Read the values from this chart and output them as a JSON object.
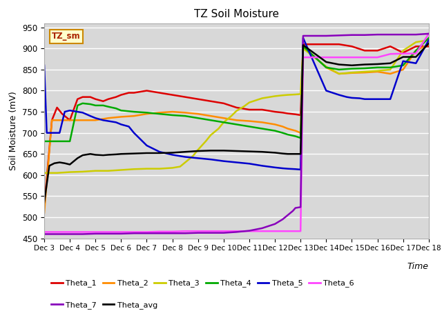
{
  "title": "TZ Soil Moisture",
  "ylabel": "Soil Moisture (mV)",
  "xlabel": "Time",
  "ylim": [
    450,
    960
  ],
  "yticks": [
    450,
    500,
    550,
    600,
    650,
    700,
    750,
    800,
    850,
    900,
    950
  ],
  "label_box": "TZ_sm",
  "x_labels": [
    "Dec 3",
    "Dec 4",
    "Dec 5",
    "Dec 6",
    "Dec 7",
    "Dec 8",
    "Dec 9",
    "Dec 10",
    "Dec 11",
    "Dec 12",
    "Dec 13",
    "Dec 14",
    "Dec 15",
    "Dec 16",
    "Dec 17",
    "Dec 18"
  ],
  "series_order": [
    "Theta_1",
    "Theta_2",
    "Theta_3",
    "Theta_4",
    "Theta_5",
    "Theta_6",
    "Theta_7",
    "Theta_avg"
  ],
  "series": {
    "Theta_1": {
      "color": "#dd0000",
      "data_x": [
        0,
        0.3,
        0.5,
        0.7,
        1.0,
        1.3,
        1.5,
        1.8,
        2.0,
        2.3,
        2.5,
        2.8,
        3.0,
        3.3,
        3.5,
        4.0,
        4.5,
        5.0,
        5.5,
        6.0,
        6.5,
        7.0,
        7.5,
        8.0,
        8.5,
        9.0,
        9.3,
        9.5,
        9.8,
        10.0,
        10.1,
        11.0,
        11.5,
        12.0,
        12.5,
        13.0,
        13.5,
        14.0,
        14.5,
        15.0
      ],
      "data_y": [
        525,
        730,
        760,
        745,
        730,
        780,
        785,
        785,
        780,
        775,
        780,
        785,
        790,
        795,
        795,
        800,
        795,
        790,
        785,
        780,
        775,
        770,
        760,
        755,
        755,
        750,
        748,
        746,
        744,
        742,
        910,
        910,
        910,
        905,
        895,
        895,
        905,
        890,
        905,
        905
      ]
    },
    "Theta_2": {
      "color": "#ff8c00",
      "data_x": [
        0,
        0.3,
        0.5,
        0.7,
        1.0,
        1.3,
        1.5,
        1.8,
        2.0,
        2.5,
        3.0,
        3.5,
        4.0,
        4.5,
        5.0,
        5.5,
        6.0,
        6.5,
        7.0,
        7.5,
        8.0,
        8.5,
        9.0,
        9.3,
        9.5,
        9.8,
        10.0,
        10.1,
        11.0,
        11.5,
        12.0,
        12.5,
        13.0,
        13.5,
        14.0,
        14.5,
        15.0
      ],
      "data_y": [
        510,
        730,
        730,
        730,
        730,
        730,
        730,
        730,
        730,
        735,
        738,
        740,
        745,
        748,
        750,
        748,
        745,
        740,
        735,
        730,
        728,
        725,
        720,
        715,
        710,
        705,
        700,
        905,
        855,
        840,
        842,
        843,
        845,
        840,
        850,
        895,
        910
      ]
    },
    "Theta_3": {
      "color": "#cccc00",
      "data_x": [
        0,
        0.3,
        0.5,
        1.0,
        1.5,
        2.0,
        2.5,
        3.0,
        3.5,
        4.0,
        4.5,
        5.0,
        5.3,
        5.5,
        5.8,
        6.0,
        6.3,
        6.5,
        6.8,
        7.0,
        7.3,
        7.5,
        7.8,
        8.0,
        8.3,
        8.5,
        8.8,
        9.0,
        9.3,
        9.5,
        9.8,
        10.0,
        10.1,
        11.0,
        11.5,
        12.0,
        12.5,
        13.0,
        13.5,
        14.0,
        14.5,
        15.0
      ],
      "data_y": [
        605,
        605,
        605,
        607,
        608,
        610,
        610,
        612,
        614,
        615,
        615,
        617,
        620,
        630,
        645,
        660,
        680,
        695,
        710,
        725,
        740,
        752,
        763,
        772,
        778,
        782,
        785,
        787,
        789,
        790,
        791,
        792,
        900,
        857,
        840,
        843,
        845,
        847,
        850,
        895,
        915,
        920
      ]
    },
    "Theta_4": {
      "color": "#00aa00",
      "data_x": [
        0,
        0.3,
        0.5,
        0.7,
        1.0,
        1.3,
        1.5,
        1.8,
        2.0,
        2.3,
        2.5,
        2.8,
        3.0,
        3.5,
        4.0,
        4.5,
        5.0,
        5.5,
        6.0,
        6.5,
        7.0,
        7.5,
        8.0,
        8.5,
        9.0,
        9.3,
        9.5,
        9.8,
        10.0,
        10.1,
        11.0,
        11.5,
        12.0,
        12.5,
        13.0,
        13.5,
        14.0,
        14.5,
        15.0
      ],
      "data_y": [
        680,
        680,
        680,
        680,
        680,
        765,
        770,
        768,
        765,
        765,
        762,
        758,
        753,
        750,
        748,
        745,
        742,
        740,
        735,
        730,
        725,
        720,
        715,
        710,
        705,
        700,
        696,
        692,
        688,
        905,
        855,
        850,
        852,
        853,
        855,
        855,
        860,
        895,
        925
      ]
    },
    "Theta_5": {
      "color": "#0000cc",
      "data_x": [
        0,
        0.1,
        0.2,
        0.4,
        0.6,
        0.8,
        1.0,
        1.3,
        1.5,
        1.8,
        2.0,
        2.3,
        2.5,
        2.8,
        3.0,
        3.3,
        3.5,
        4.0,
        4.5,
        5.0,
        5.5,
        6.0,
        6.5,
        7.0,
        7.5,
        8.0,
        8.5,
        9.0,
        9.3,
        9.5,
        9.8,
        10.0,
        10.1,
        11.0,
        11.5,
        11.8,
        12.0,
        12.3,
        12.5,
        13.0,
        13.5,
        14.0,
        14.5,
        15.0
      ],
      "data_y": [
        860,
        700,
        700,
        700,
        700,
        750,
        753,
        750,
        748,
        740,
        735,
        730,
        728,
        725,
        720,
        715,
        700,
        670,
        655,
        648,
        643,
        640,
        637,
        633,
        630,
        627,
        622,
        618,
        616,
        615,
        614,
        613,
        925,
        800,
        790,
        785,
        783,
        782,
        780,
        780,
        780,
        870,
        865,
        920
      ]
    },
    "Theta_6": {
      "color": "#ff44ff",
      "data_x": [
        0,
        0.5,
        1.0,
        1.5,
        2.0,
        2.5,
        3.0,
        3.5,
        4.0,
        4.5,
        5.0,
        5.5,
        6.0,
        6.5,
        7.0,
        7.5,
        8.0,
        8.5,
        9.0,
        9.5,
        9.8,
        10.0,
        10.1,
        10.5,
        11.0,
        11.5,
        12.0,
        12.5,
        13.0,
        13.5,
        14.0,
        14.5,
        15.0
      ],
      "data_y": [
        465,
        465,
        465,
        465,
        465,
        465,
        465,
        465,
        465,
        466,
        466,
        467,
        467,
        467,
        467,
        467,
        467,
        467,
        467,
        467,
        467,
        467,
        879,
        879,
        879,
        879,
        879,
        879,
        879,
        887,
        888,
        888,
        935
      ]
    },
    "Theta_7": {
      "color": "#8800bb",
      "data_x": [
        0,
        0.5,
        1.0,
        1.5,
        2.0,
        2.5,
        3.0,
        3.5,
        4.0,
        4.5,
        5.0,
        5.5,
        6.0,
        6.5,
        7.0,
        7.5,
        8.0,
        8.5,
        9.0,
        9.3,
        9.5,
        9.7,
        9.8,
        10.0,
        10.1,
        11.0,
        11.5,
        12.0,
        12.5,
        13.0,
        13.5,
        14.0,
        14.5,
        15.0
      ],
      "data_y": [
        460,
        460,
        460,
        460,
        461,
        461,
        461,
        462,
        462,
        462,
        462,
        462,
        463,
        463,
        463,
        465,
        468,
        474,
        484,
        495,
        505,
        515,
        522,
        524,
        930,
        930,
        931,
        932,
        932,
        933,
        933,
        933,
        933,
        935
      ]
    },
    "Theta_avg": {
      "color": "#000000",
      "data_x": [
        0,
        0.2,
        0.4,
        0.6,
        0.8,
        1.0,
        1.3,
        1.5,
        1.8,
        2.0,
        2.3,
        2.5,
        2.8,
        3.0,
        3.5,
        4.0,
        4.5,
        5.0,
        5.5,
        6.0,
        6.5,
        7.0,
        7.5,
        8.0,
        8.5,
        9.0,
        9.3,
        9.5,
        9.8,
        10.0,
        10.1,
        11.0,
        11.5,
        12.0,
        12.5,
        13.0,
        13.5,
        14.0,
        14.5,
        15.0
      ],
      "data_y": [
        535,
        622,
        628,
        630,
        628,
        625,
        640,
        647,
        650,
        648,
        647,
        648,
        649,
        650,
        651,
        652,
        652,
        653,
        655,
        657,
        658,
        658,
        657,
        656,
        655,
        653,
        651,
        650,
        650,
        650,
        908,
        868,
        862,
        860,
        862,
        863,
        865,
        880,
        880,
        912
      ]
    }
  },
  "legend_row1": [
    "Theta_1",
    "Theta_2",
    "Theta_3",
    "Theta_4",
    "Theta_5",
    "Theta_6"
  ],
  "legend_row2": [
    "Theta_7",
    "Theta_avg"
  ]
}
